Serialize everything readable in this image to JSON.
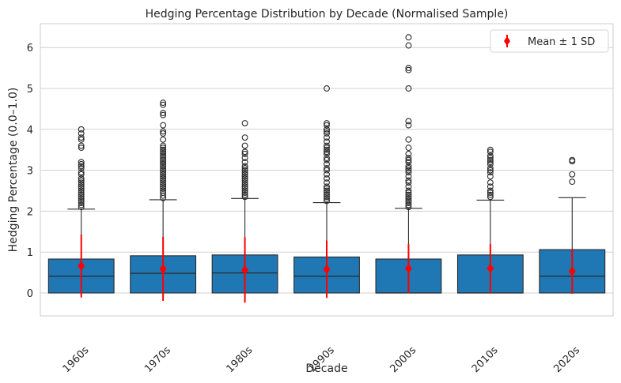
{
  "chart_data": {
    "type": "box",
    "title": "Hedging Percentage Distribution by Decade (Normalised Sample)",
    "xlabel": "Decade",
    "ylabel": "Hedging Percentage (0.0–1.0)",
    "ylim": [
      -0.55,
      6.6
    ],
    "yticks": [
      0,
      1,
      2,
      3,
      4,
      5,
      6
    ],
    "grid": true,
    "legend": {
      "position": "top-right",
      "label": "Mean ± 1 SD"
    },
    "colors": {
      "box": "#1f77b4",
      "box_edge": "#2b2b2b",
      "mean": "#ff0000",
      "grid": "#d0d0d0",
      "axes_edge": "#cccccc"
    },
    "categories": [
      "1960s",
      "1970s",
      "1980s",
      "1990s",
      "2000s",
      "2010s",
      "2020s"
    ],
    "boxes": [
      {
        "q1": 0,
        "median": 0.41,
        "q3": 0.83,
        "whisker_low": 0,
        "whisker_high": 2.05,
        "mean": 0.66,
        "sd": 0.77,
        "outliers": [
          2.1,
          2.15,
          2.2,
          2.25,
          2.3,
          2.35,
          2.4,
          2.45,
          2.5,
          2.55,
          2.6,
          2.65,
          2.7,
          2.75,
          2.8,
          2.9,
          2.95,
          3.05,
          3.1,
          3.15,
          3.2,
          3.55,
          3.6,
          3.75,
          3.8,
          3.9,
          4.0
        ]
      },
      {
        "q1": 0,
        "median": 0.48,
        "q3": 0.91,
        "whisker_low": 0,
        "whisker_high": 2.28,
        "mean": 0.59,
        "sd": 0.78,
        "outliers": [
          2.32,
          2.38,
          2.45,
          2.5,
          2.55,
          2.6,
          2.65,
          2.7,
          2.75,
          2.8,
          2.85,
          2.9,
          2.95,
          3.0,
          3.05,
          3.1,
          3.15,
          3.2,
          3.25,
          3.3,
          3.35,
          3.4,
          3.45,
          3.5,
          3.55,
          3.6,
          3.75,
          3.9,
          3.95,
          4.1,
          4.35,
          4.4,
          4.6,
          4.65
        ]
      },
      {
        "q1": 0,
        "median": 0.49,
        "q3": 0.93,
        "whisker_low": 0,
        "whisker_high": 2.31,
        "mean": 0.56,
        "sd": 0.8,
        "outliers": [
          2.35,
          2.4,
          2.45,
          2.5,
          2.55,
          2.6,
          2.65,
          2.7,
          2.75,
          2.8,
          2.85,
          2.9,
          2.95,
          3.0,
          3.05,
          3.1,
          3.2,
          3.3,
          3.4,
          3.45,
          3.6,
          3.8,
          4.15
        ]
      },
      {
        "q1": 0,
        "median": 0.41,
        "q3": 0.88,
        "whisker_low": 0,
        "whisker_high": 2.21,
        "mean": 0.58,
        "sd": 0.7,
        "outliers": [
          2.25,
          2.3,
          2.35,
          2.4,
          2.45,
          2.5,
          2.55,
          2.6,
          2.7,
          2.8,
          2.9,
          3.0,
          3.05,
          3.15,
          3.25,
          3.3,
          3.4,
          3.45,
          3.5,
          3.55,
          3.6,
          3.7,
          3.8,
          3.9,
          3.95,
          4.0,
          4.1,
          4.15,
          5.0
        ]
      },
      {
        "q1": 0,
        "median": 0.0,
        "q3": 0.83,
        "whisker_low": 0,
        "whisker_high": 2.07,
        "mean": 0.6,
        "sd": 0.6,
        "outliers": [
          2.1,
          2.15,
          2.2,
          2.25,
          2.3,
          2.35,
          2.4,
          2.45,
          2.5,
          2.6,
          2.7,
          2.75,
          2.85,
          2.95,
          3.0,
          3.05,
          3.1,
          3.2,
          3.25,
          3.3,
          3.4,
          3.55,
          3.75,
          4.1,
          4.2,
          5.0,
          5.45,
          5.5,
          6.05,
          6.25
        ]
      },
      {
        "q1": 0,
        "median": 0.0,
        "q3": 0.93,
        "whisker_low": 0,
        "whisker_high": 2.27,
        "mean": 0.6,
        "sd": 0.6,
        "outliers": [
          2.35,
          2.4,
          2.45,
          2.5,
          2.6,
          2.7,
          2.85,
          2.95,
          3.0,
          3.05,
          3.15,
          3.2,
          3.25,
          3.3,
          3.35,
          3.45,
          3.5
        ]
      },
      {
        "q1": 0,
        "median": 0.41,
        "q3": 1.06,
        "whisker_low": 0,
        "whisker_high": 2.33,
        "mean": 0.53,
        "sd": 0.55,
        "outliers": [
          2.72,
          2.9,
          3.22,
          3.25
        ]
      }
    ]
  }
}
